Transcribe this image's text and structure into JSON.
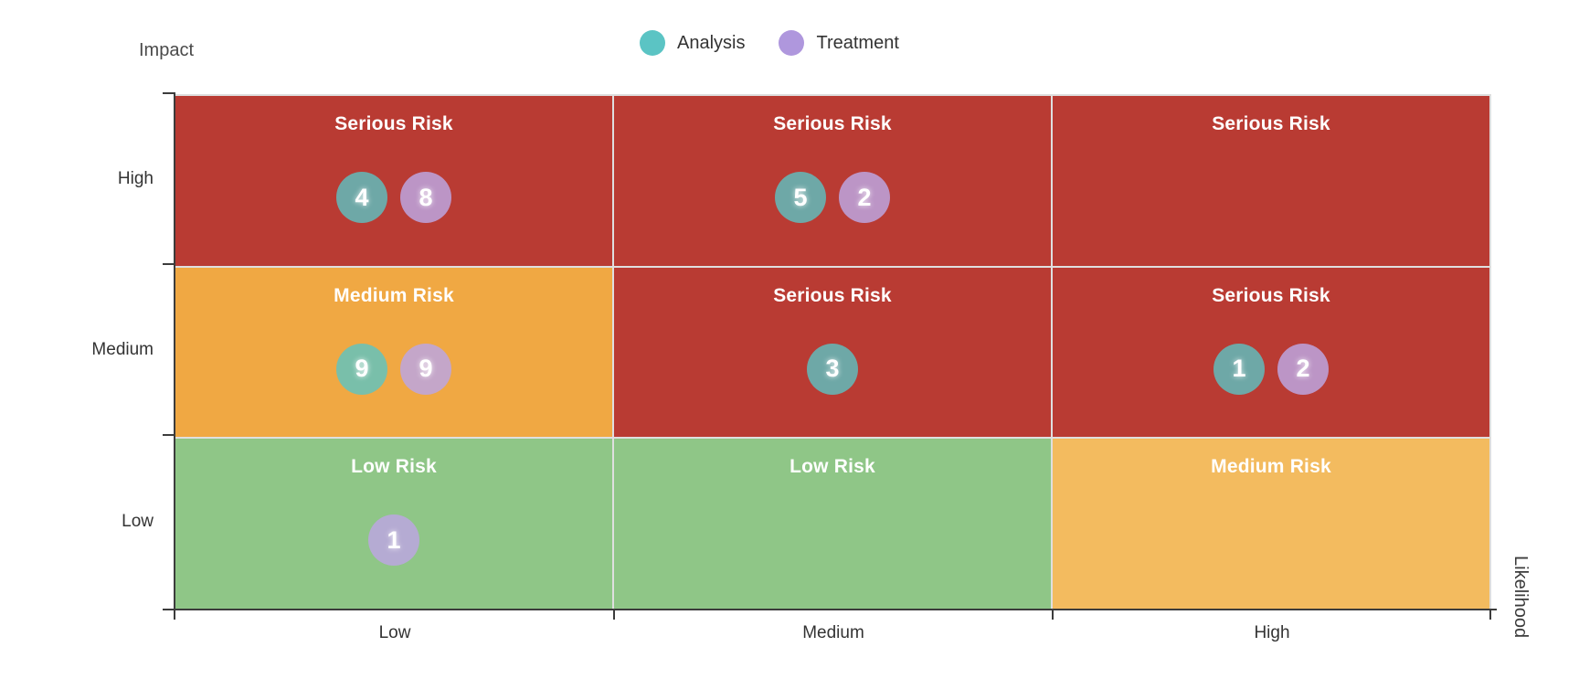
{
  "legend": {
    "items": [
      {
        "label": "Analysis",
        "color": "#5BC4C4"
      },
      {
        "label": "Treatment",
        "color": "#AF97DD"
      }
    ]
  },
  "colors": {
    "serious": "#B93B33",
    "medium": "#F0A843",
    "medium_light": "#F3BB5F",
    "low": "#8FC687",
    "analysis_badge": "rgba(91,196,196,0.8)",
    "treatment_badge": "rgba(188,166,224,0.85)",
    "axis": "#3C3C3C"
  },
  "chart_data": {
    "type": "heatmap",
    "title": "",
    "x_axis": {
      "title": "Likelihood",
      "categories": [
        "Low",
        "Medium",
        "High"
      ]
    },
    "y_axis": {
      "title": "Impact",
      "categories": [
        "High",
        "Medium",
        "Low"
      ]
    },
    "legend_entries": [
      "Analysis",
      "Treatment"
    ],
    "legend_position": "top",
    "cells": [
      {
        "impact": "High",
        "likelihood": "Low",
        "label": "Serious Risk",
        "level": "serious",
        "analysis": 4,
        "treatment": 8
      },
      {
        "impact": "High",
        "likelihood": "Medium",
        "label": "Serious Risk",
        "level": "serious",
        "analysis": 5,
        "treatment": 2
      },
      {
        "impact": "High",
        "likelihood": "High",
        "label": "Serious Risk",
        "level": "serious",
        "analysis": null,
        "treatment": null
      },
      {
        "impact": "Medium",
        "likelihood": "Low",
        "label": "Medium Risk",
        "level": "medium",
        "analysis": 9,
        "treatment": 9
      },
      {
        "impact": "Medium",
        "likelihood": "Medium",
        "label": "Serious Risk",
        "level": "serious",
        "analysis": 3,
        "treatment": null
      },
      {
        "impact": "Medium",
        "likelihood": "High",
        "label": "Serious Risk",
        "level": "serious",
        "analysis": 1,
        "treatment": 2
      },
      {
        "impact": "Low",
        "likelihood": "Low",
        "label": "Low Risk",
        "level": "low",
        "analysis": null,
        "treatment": 1
      },
      {
        "impact": "Low",
        "likelihood": "Medium",
        "label": "Low Risk",
        "level": "low",
        "analysis": null,
        "treatment": null
      },
      {
        "impact": "Low",
        "likelihood": "High",
        "label": "Medium Risk",
        "level": "medium-light",
        "analysis": null,
        "treatment": null
      }
    ]
  }
}
